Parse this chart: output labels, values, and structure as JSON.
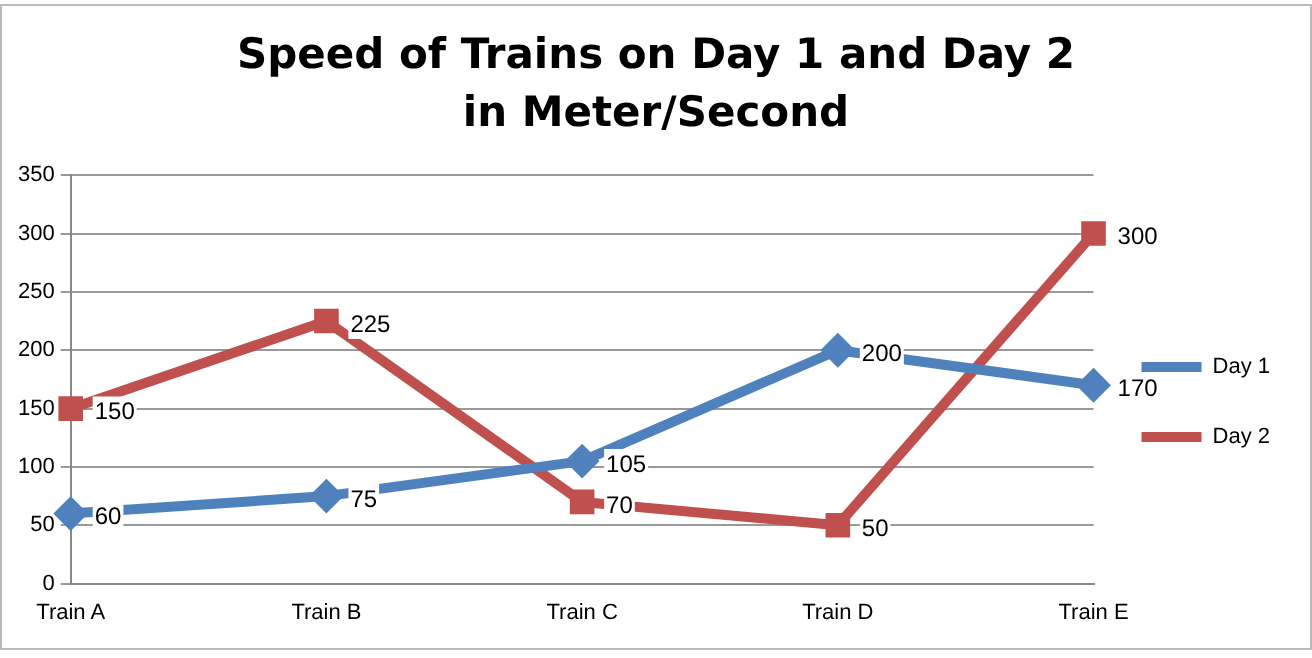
{
  "chart_data": {
    "type": "line",
    "title": "Speed of Trains on Day 1 and Day 2 in Meter/Second",
    "categories": [
      "Train A",
      "Train B",
      "Train C",
      "Train D",
      "Train E"
    ],
    "series": [
      {
        "name": "Day 1",
        "color": "#4f81bd",
        "marker": "diamond",
        "values": [
          60,
          75,
          105,
          200,
          170
        ]
      },
      {
        "name": "Day 2",
        "color": "#c0504d",
        "marker": "square",
        "values": [
          150,
          225,
          70,
          50,
          300
        ]
      }
    ],
    "ylim": [
      0,
      350
    ],
    "yticks": [
      0,
      50,
      100,
      150,
      200,
      250,
      300,
      350
    ],
    "grid": "y",
    "legend": "right",
    "data_labels": true,
    "line_style": "solid"
  }
}
